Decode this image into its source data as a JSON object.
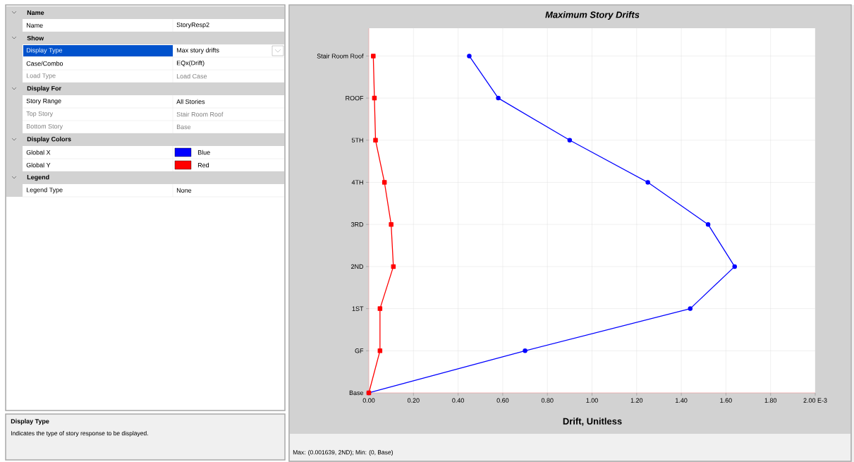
{
  "chart_data": [
    {
      "type": "other",
      "annotations": [
        "Name",
        "Name",
        "StoryResp2",
        "Show",
        "Display Type",
        "Max story drifts",
        "Case/Combo",
        "EQx(Drift)",
        "Load Type",
        "Load Case",
        "Display For",
        "Story Range",
        "All Stories",
        "Top Story",
        "Stair Room Roof",
        "Bottom Story",
        "Base",
        "Display Colors",
        "Global X",
        "Blue",
        "Global Y",
        "Red",
        "Legend",
        "Legend Type",
        "None",
        "Display Type",
        "Indicates the type of story response to be displayed."
      ]
    },
    {
      "type": "line",
      "orientation": "horizontal",
      "title": "Maximum Story Drifts",
      "xlabel": "Drift, Unitless",
      "categories": [
        "Stair Room Roof",
        "ROOF",
        "5TH",
        "4TH",
        "3RD",
        "2ND",
        "1ST",
        "GF",
        "Base"
      ],
      "series": [
        {
          "color": "#0000ff",
          "marker": "circle",
          "values": [
            0.45,
            0.58,
            0.9,
            1.25,
            1.52,
            1.639,
            1.44,
            0.7,
            0
          ]
        },
        {
          "color": "#ff0000",
          "marker": "square",
          "values": [
            0.02,
            0.025,
            0.03,
            0.07,
            0.1,
            0.11,
            0.05,
            0.05,
            0
          ]
        }
      ],
      "xlim": [
        0,
        2
      ],
      "xticks": [
        {
          "value": 0,
          "label": "0.00"
        },
        {
          "value": 0.2,
          "label": "0.20"
        },
        {
          "value": 0.4,
          "label": "0.40"
        },
        {
          "value": 0.6,
          "label": "0.60"
        },
        {
          "value": 0.8,
          "label": "0.80"
        },
        {
          "value": 1,
          "label": "1.00"
        },
        {
          "value": 1.2,
          "label": "1.20"
        },
        {
          "value": 1.4,
          "label": "1.40"
        },
        {
          "value": 1.6,
          "label": "1.60"
        },
        {
          "value": 1.8,
          "label": "1.80"
        },
        {
          "value": 2,
          "label": "2.00 E-3"
        }
      ],
      "grid": true,
      "line_style": "solid",
      "annotations": [
        "Max: (0.001639, 2ND);   Min: (0, Base)"
      ]
    }
  ]
}
